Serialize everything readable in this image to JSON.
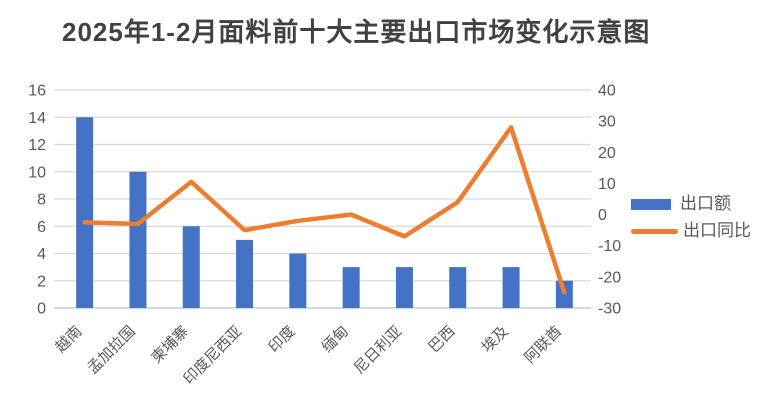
{
  "title": "2025年1-2月面料前十大主要出口市场变化示意图",
  "chart_data": {
    "type": "bar",
    "subtype": "combo-bar-line-dual-axis",
    "title": "2025年1-2月面料前十大主要出口市场变化示意图",
    "categories": [
      "越南",
      "孟加拉国",
      "柬埔寨",
      "印度尼西亚",
      "印度",
      "缅甸",
      "尼日利亚",
      "巴西",
      "埃及",
      "阿联酋"
    ],
    "series": [
      {
        "name": "出口额",
        "type": "bar",
        "axis": "left",
        "color": "#4472C4",
        "values": [
          14,
          10,
          6,
          5,
          4,
          3,
          3,
          3,
          3,
          2
        ]
      },
      {
        "name": "出口同比",
        "type": "line",
        "axis": "right",
        "color": "#ED7D31",
        "values": [
          -2.5,
          -3,
          10.5,
          -5,
          -2,
          0,
          -7,
          4,
          28,
          -25
        ]
      }
    ],
    "left_axis": {
      "min": 0,
      "max": 16,
      "step": 2,
      "ticks": [
        0,
        2,
        4,
        6,
        8,
        10,
        12,
        14,
        16
      ]
    },
    "right_axis": {
      "min": -30,
      "max": 40,
      "step": 10,
      "ticks": [
        -30,
        -20,
        -10,
        0,
        10,
        20,
        30,
        40
      ]
    },
    "grid": true,
    "legend_position": "right",
    "xlabel": "",
    "ylabel": ""
  },
  "colors": {
    "bar": "#4472C4",
    "line": "#ED7D31",
    "gridline": "#D9D9D9",
    "axis_line": "#BFBFBF",
    "axis_text": "#595959",
    "title_text": "#414141",
    "background": "#FFFFFF"
  }
}
